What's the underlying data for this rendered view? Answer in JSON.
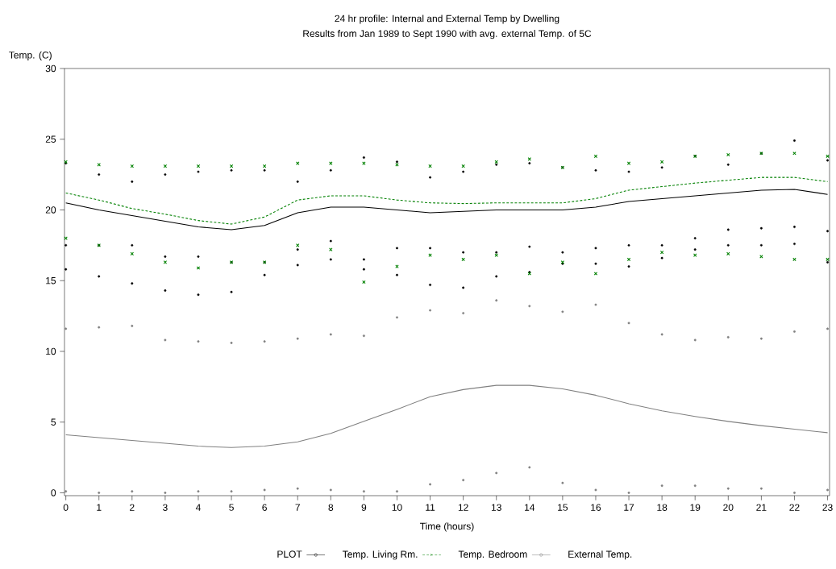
{
  "chart_data": {
    "type": "line",
    "title": "24 hr profile: Internal and External Temp by Dwelling",
    "subtitle": "Results from Jan 1989 to Sept 1990 with avg. external Temp. of 5C",
    "xlabel": "Time (hours)",
    "ylabel": "Temp. (C)",
    "legend_title": "PLOT",
    "legend": "bottom",
    "xlim": [
      -0.04,
      23.06
    ],
    "ylim": [
      -0.2,
      30
    ],
    "xticks": [
      0,
      1,
      2,
      3,
      4,
      5,
      6,
      7,
      8,
      9,
      10,
      11,
      12,
      13,
      14,
      15,
      16,
      17,
      18,
      19,
      20,
      21,
      22,
      23
    ],
    "yticks": [
      0,
      5,
      10,
      15,
      20,
      25,
      30
    ],
    "x": [
      0,
      1,
      2,
      3,
      4,
      5,
      6,
      7,
      8,
      9,
      10,
      11,
      12,
      13,
      14,
      15,
      16,
      17,
      18,
      19,
      20,
      21,
      22,
      23
    ],
    "series": [
      {
        "name": "Temp. Living Rm.",
        "color": "#000000",
        "line_style": "solid",
        "values": [
          20.5,
          20.0,
          19.6,
          19.2,
          18.8,
          18.6,
          18.9,
          19.8,
          20.2,
          20.2,
          20.0,
          19.8,
          19.9,
          20.0,
          20.0,
          20.0,
          20.2,
          20.6,
          20.8,
          21.0,
          21.2,
          21.4,
          21.45,
          21.1
        ]
      },
      {
        "name": "Temp. Bedroom",
        "color": "#008000",
        "line_style": "dashed",
        "values": [
          21.2,
          20.7,
          20.1,
          19.7,
          19.25,
          19.0,
          19.5,
          20.7,
          21.0,
          21.0,
          20.7,
          20.5,
          20.45,
          20.5,
          20.5,
          20.5,
          20.8,
          21.4,
          21.65,
          21.9,
          22.1,
          22.3,
          22.3,
          22.0
        ]
      },
      {
        "name": "External Temp.",
        "color": "#808080",
        "line_style": "solid",
        "values": [
          4.1,
          3.9,
          3.7,
          3.5,
          3.3,
          3.2,
          3.3,
          3.6,
          4.2,
          5.05,
          5.9,
          6.8,
          7.3,
          7.6,
          7.6,
          7.35,
          6.9,
          6.3,
          5.8,
          5.4,
          5.05,
          4.75,
          4.5,
          4.25
        ]
      },
      {
        "type": "scatter",
        "marker": "circle",
        "color": "#000000",
        "x": [
          0,
          0,
          0,
          1,
          1,
          1,
          2,
          2,
          2,
          3,
          3,
          3,
          4,
          4,
          4,
          5,
          5,
          5,
          6,
          6,
          6,
          7,
          7,
          7,
          8,
          8,
          8,
          9,
          9,
          9,
          10,
          10,
          10,
          11,
          11,
          11,
          12,
          12,
          12,
          13,
          13,
          13,
          14,
          14,
          14,
          15,
          15,
          15,
          16,
          16,
          16,
          17,
          17,
          17,
          18,
          18,
          18,
          19,
          19,
          19,
          20,
          20,
          20,
          21,
          21,
          21,
          22,
          22,
          22,
          23,
          23,
          23
        ],
        "values": [
          23.3,
          17.5,
          15.8,
          22.5,
          17.5,
          15.3,
          22.0,
          17.5,
          14.8,
          22.5,
          16.7,
          14.3,
          22.7,
          16.7,
          14.0,
          22.8,
          16.3,
          14.2,
          22.8,
          16.3,
          15.4,
          22.0,
          17.2,
          16.1,
          22.8,
          17.8,
          16.5,
          23.7,
          16.5,
          15.8,
          23.4,
          17.3,
          15.4,
          22.3,
          17.3,
          14.7,
          22.7,
          17.0,
          14.5,
          23.2,
          17.0,
          15.3,
          23.3,
          17.4,
          15.6,
          23.0,
          17.0,
          16.2,
          22.8,
          17.3,
          16.2,
          22.7,
          17.5,
          16.0,
          23.0,
          17.5,
          16.6,
          23.8,
          18.0,
          17.2,
          23.2,
          18.6,
          17.5,
          24.0,
          18.7,
          17.5,
          24.9,
          18.8,
          17.6,
          23.5,
          18.5,
          16.3
        ]
      },
      {
        "type": "scatter",
        "marker": "cross",
        "color": "#008000",
        "x": [
          0,
          0,
          1,
          1,
          2,
          2,
          3,
          3,
          4,
          4,
          5,
          5,
          6,
          6,
          7,
          7,
          8,
          8,
          9,
          9,
          10,
          10,
          11,
          11,
          12,
          12,
          13,
          13,
          14,
          14,
          15,
          15,
          16,
          16,
          17,
          17,
          18,
          18,
          19,
          19,
          20,
          20,
          21,
          21,
          22,
          22,
          23,
          23
        ],
        "values": [
          23.4,
          18.0,
          23.2,
          17.5,
          23.1,
          16.9,
          23.1,
          16.3,
          23.1,
          15.9,
          23.1,
          16.3,
          23.1,
          16.3,
          23.3,
          17.5,
          23.3,
          17.2,
          23.3,
          14.9,
          23.2,
          16.0,
          23.1,
          16.8,
          23.1,
          16.5,
          23.4,
          16.8,
          23.6,
          15.5,
          23.0,
          16.3,
          23.8,
          15.5,
          23.3,
          16.5,
          23.4,
          17.0,
          23.8,
          16.8,
          23.9,
          16.9,
          24.0,
          16.7,
          24.0,
          16.5,
          23.8,
          16.5
        ]
      },
      {
        "type": "scatter",
        "marker": "circle",
        "color": "#808080",
        "x": [
          0,
          0,
          1,
          1,
          2,
          2,
          3,
          3,
          4,
          4,
          5,
          5,
          6,
          6,
          7,
          7,
          8,
          8,
          9,
          9,
          10,
          10,
          11,
          11,
          12,
          12,
          13,
          13,
          14,
          14,
          15,
          15,
          16,
          16,
          17,
          17,
          18,
          18,
          19,
          19,
          20,
          20,
          21,
          21,
          22,
          22,
          23,
          23
        ],
        "values": [
          11.6,
          0.1,
          11.7,
          0.0,
          11.8,
          0.1,
          10.8,
          0.0,
          10.7,
          0.1,
          10.6,
          0.1,
          10.7,
          0.2,
          10.9,
          0.3,
          11.2,
          0.2,
          11.1,
          0.1,
          12.4,
          0.1,
          12.9,
          0.6,
          12.7,
          0.9,
          13.6,
          1.4,
          13.2,
          1.8,
          12.8,
          0.7,
          13.3,
          0.2,
          12.0,
          0.0,
          11.2,
          0.5,
          10.8,
          0.5,
          11.0,
          0.3,
          10.9,
          0.3,
          11.4,
          0.0,
          11.6,
          0.2
        ]
      }
    ]
  }
}
